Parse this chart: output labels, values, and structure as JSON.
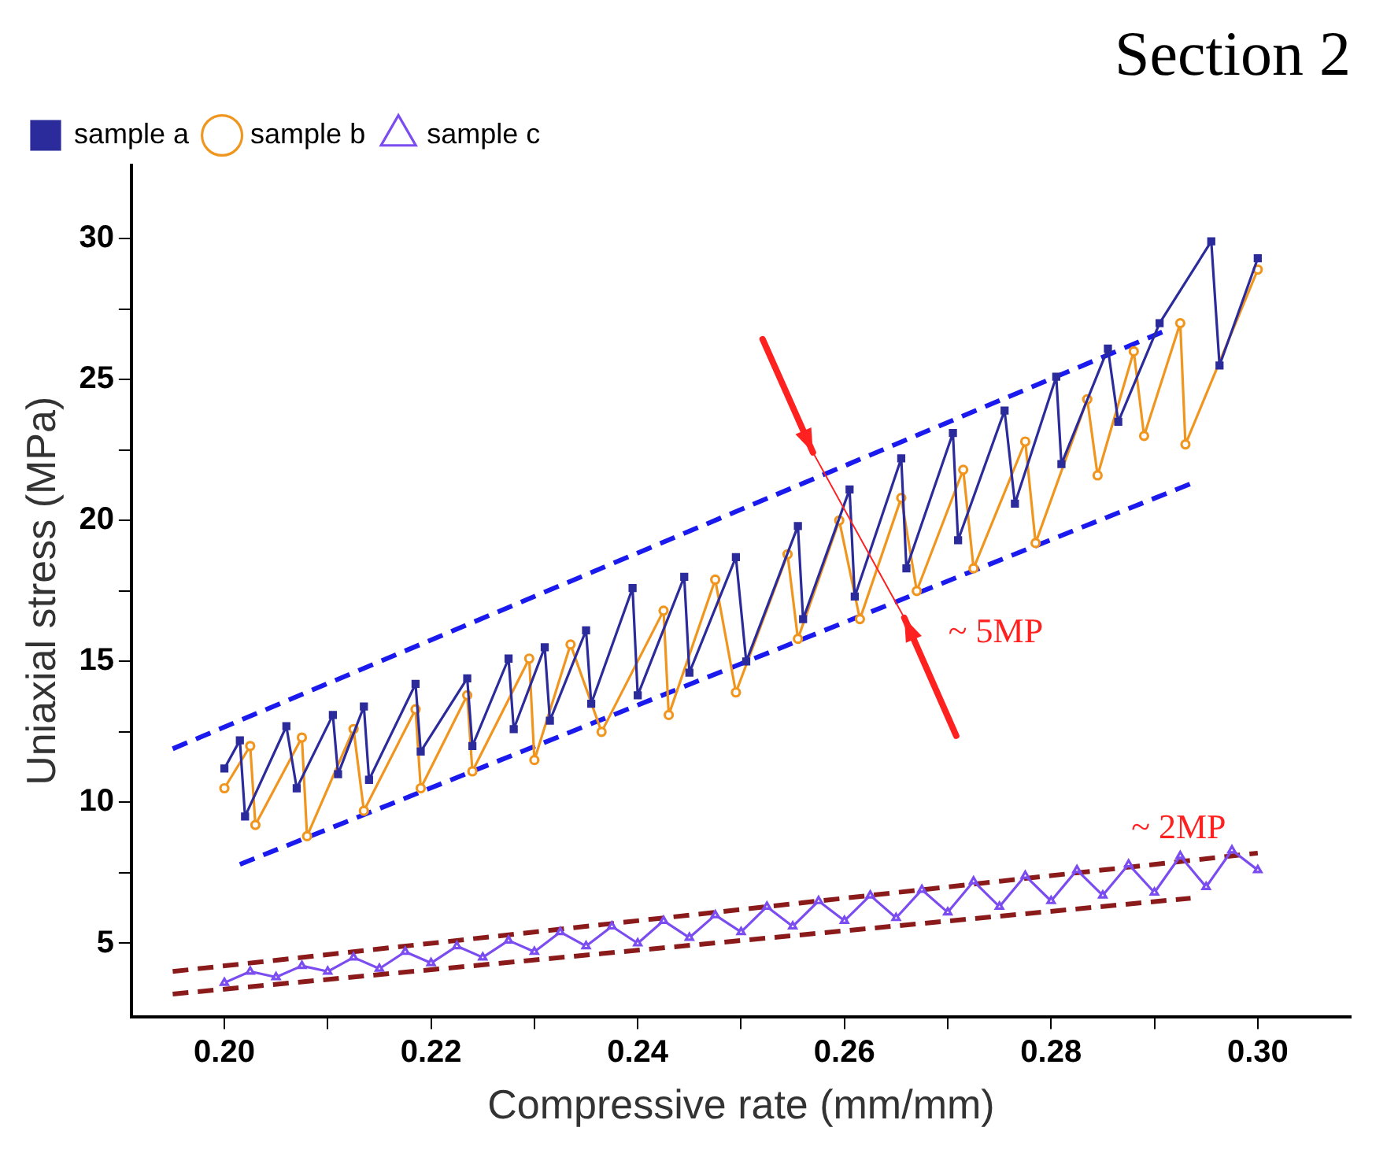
{
  "chart_data": {
    "type": "line",
    "title": "Section 2",
    "xlabel": "Compressive rate (mm/mm)",
    "ylabel": "Uniaxial stress (MPa)",
    "xlim": [
      0.191,
      0.309
    ],
    "ylim": [
      2.4,
      32.6
    ],
    "xticks": [
      {
        "value": 0.2,
        "label": "0.20"
      },
      {
        "value": 0.21,
        "label": null
      },
      {
        "value": 0.22,
        "label": "0.22"
      },
      {
        "value": 0.23,
        "label": null
      },
      {
        "value": 0.24,
        "label": "0.24"
      },
      {
        "value": 0.25,
        "label": null
      },
      {
        "value": 0.26,
        "label": "0.26"
      },
      {
        "value": 0.27,
        "label": null
      },
      {
        "value": 0.28,
        "label": "0.28"
      },
      {
        "value": 0.29,
        "label": null
      },
      {
        "value": 0.3,
        "label": "0.30"
      }
    ],
    "yticks": [
      5,
      {
        "value": 7.5,
        "label": null
      },
      10,
      {
        "value": 12.5,
        "label": null
      },
      15,
      {
        "value": 17.5,
        "label": null
      },
      20,
      {
        "value": 22.5,
        "label": null
      },
      25,
      {
        "value": 27.5,
        "label": null
      },
      30
    ],
    "grid": false,
    "legend": "top left",
    "series": [
      {
        "name": "sample a",
        "color": "#2b2b9b",
        "marker": "square",
        "x": [
          0.2,
          0.2015,
          0.202,
          0.206,
          0.207,
          0.2105,
          0.211,
          0.2135,
          0.214,
          0.2185,
          0.219,
          0.2235,
          0.224,
          0.2275,
          0.228,
          0.231,
          0.2315,
          0.235,
          0.2355,
          0.2395,
          0.24,
          0.2445,
          0.245,
          0.2495,
          0.2505,
          0.2555,
          0.256,
          0.2605,
          0.261,
          0.2655,
          0.266,
          0.2705,
          0.271,
          0.2755,
          0.2765,
          0.2805,
          0.281,
          0.2855,
          0.2865,
          0.2905,
          0.2955,
          0.2963,
          0.3
        ],
        "values": [
          11.2,
          12.2,
          9.5,
          12.7,
          10.5,
          13.1,
          11.0,
          13.4,
          10.8,
          14.2,
          11.8,
          14.4,
          12.0,
          15.1,
          12.6,
          15.5,
          12.9,
          16.1,
          13.5,
          17.6,
          13.8,
          18.0,
          14.6,
          18.7,
          15.0,
          19.8,
          16.5,
          21.1,
          17.3,
          22.2,
          18.3,
          23.1,
          19.3,
          23.9,
          20.6,
          25.1,
          22.0,
          26.1,
          23.5,
          27.0,
          29.9,
          25.5,
          29.3
        ]
      },
      {
        "name": "sample b",
        "color": "#f0961e",
        "marker": "circle",
        "x": [
          0.2,
          0.2025,
          0.203,
          0.2075,
          0.208,
          0.2125,
          0.2135,
          0.2185,
          0.219,
          0.2235,
          0.224,
          0.2295,
          0.23,
          0.2335,
          0.2365,
          0.2425,
          0.243,
          0.2475,
          0.2495,
          0.2545,
          0.2555,
          0.2595,
          0.2615,
          0.2655,
          0.267,
          0.2715,
          0.2725,
          0.2775,
          0.2785,
          0.2835,
          0.2845,
          0.288,
          0.289,
          0.2925,
          0.293,
          0.3
        ],
        "values": [
          10.5,
          12.0,
          9.2,
          12.3,
          8.8,
          12.6,
          9.7,
          13.3,
          10.5,
          13.8,
          11.1,
          15.1,
          11.5,
          15.6,
          12.5,
          16.8,
          13.1,
          17.9,
          13.9,
          18.8,
          15.8,
          20.0,
          16.5,
          20.8,
          17.5,
          21.8,
          18.3,
          22.8,
          19.2,
          24.3,
          21.6,
          26.0,
          23.0,
          27.0,
          22.7,
          28.9
        ]
      },
      {
        "name": "sample c",
        "color": "#7b4cf0",
        "marker": "triangle",
        "x": [
          0.2,
          0.2025,
          0.205,
          0.2075,
          0.21,
          0.2125,
          0.215,
          0.2175,
          0.22,
          0.2225,
          0.225,
          0.2275,
          0.23,
          0.2325,
          0.235,
          0.2375,
          0.24,
          0.2425,
          0.245,
          0.2475,
          0.25,
          0.2525,
          0.255,
          0.2575,
          0.26,
          0.2625,
          0.265,
          0.2675,
          0.27,
          0.2725,
          0.275,
          0.2775,
          0.28,
          0.2825,
          0.285,
          0.2875,
          0.29,
          0.2925,
          0.295,
          0.2975,
          0.3
        ],
        "values": [
          3.6,
          4.0,
          3.8,
          4.2,
          4.0,
          4.5,
          4.1,
          4.7,
          4.3,
          4.9,
          4.5,
          5.1,
          4.7,
          5.4,
          4.9,
          5.6,
          5.0,
          5.8,
          5.2,
          6.0,
          5.4,
          6.3,
          5.6,
          6.5,
          5.8,
          6.7,
          5.9,
          6.9,
          6.1,
          7.2,
          6.3,
          7.4,
          6.5,
          7.6,
          6.7,
          7.8,
          6.8,
          8.1,
          7.0,
          8.3,
          7.6
        ]
      },
      {
        "color": "#1a1aee",
        "marker": "none",
        "line_style": "dashed",
        "x": [
          0.195,
          0.2915
        ],
        "values": [
          11.9,
          26.8
        ]
      },
      {
        "color": "#1a1aee",
        "marker": "none",
        "line_style": "dashed",
        "x": [
          0.2015,
          0.2935
        ],
        "values": [
          7.8,
          21.3
        ]
      },
      {
        "color": "#8b1a1a",
        "marker": "none",
        "line_style": "dashed",
        "x": [
          0.195,
          0.3
        ],
        "values": [
          4.0,
          8.2
        ]
      },
      {
        "color": "#8b1a1a",
        "marker": "none",
        "line_style": "dashed",
        "x": [
          0.195,
          0.2935
        ],
        "values": [
          3.2,
          6.6
        ]
      }
    ],
    "annotations": [
      "~ 5MP",
      "~ 2MP"
    ]
  }
}
